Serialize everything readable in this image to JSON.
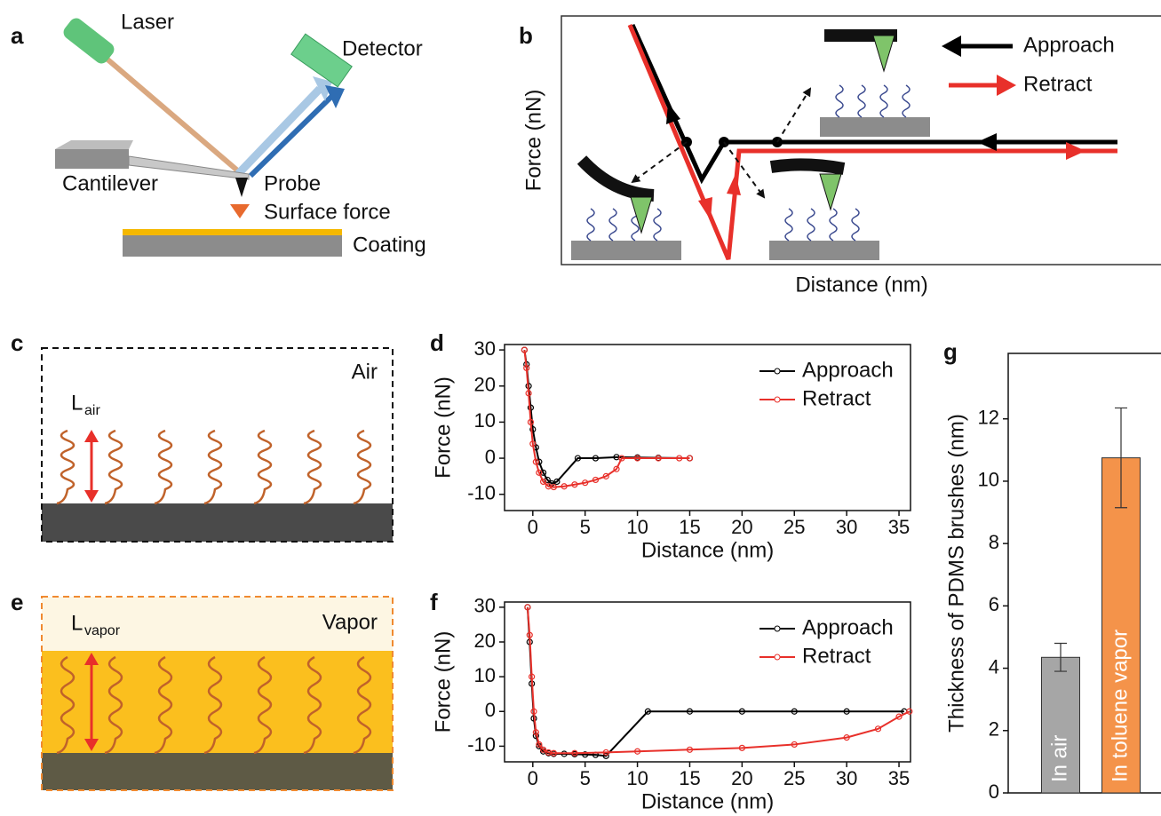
{
  "panel_labels": [
    "a",
    "b",
    "c",
    "d",
    "e",
    "f",
    "g"
  ],
  "setup": {
    "laser": "Laser",
    "detector": "Detector",
    "cantilever": "Cantilever",
    "probe": "Probe",
    "surface_force": "Surface force",
    "coating": "Coating"
  },
  "schematic": {
    "x_label": "Distance (nm)",
    "y_label": "Force (nN)",
    "legend": [
      "Approach",
      "Retract"
    ]
  },
  "brush_air": {
    "medium": "Air",
    "length_symbol": "L",
    "length_subscript": "air"
  },
  "brush_vapor": {
    "medium": "Vapor",
    "length_symbol": "L",
    "length_subscript": "vapor"
  },
  "chart_data": [
    {
      "type": "line",
      "x_label": "Distance (nm)",
      "y_label": "Force (nN)",
      "xlim": [
        -2.7,
        36.1
      ],
      "ylim": [
        -14.5,
        31.5
      ],
      "xticks": [
        0,
        5,
        10,
        15,
        20,
        25,
        30,
        35
      ],
      "yticks": [
        -10,
        0,
        10,
        20,
        30
      ],
      "legend_position": "upper right",
      "series": [
        {
          "name": "Approach",
          "color": "#000000",
          "x": [
            -0.8,
            -0.6,
            -0.4,
            -0.2,
            0,
            0.3,
            0.6,
            1,
            1.4,
            1.8,
            2.3,
            4.3,
            6,
            8,
            10,
            12,
            15
          ],
          "values": [
            30,
            26,
            20,
            14,
            8,
            3,
            -1,
            -4,
            -6,
            -7,
            -6.5,
            0,
            0,
            0.3,
            0.2,
            0.1,
            0
          ]
        },
        {
          "name": "Retract",
          "color": "#e8302a",
          "x": [
            -0.8,
            -0.6,
            -0.4,
            -0.2,
            0,
            0.3,
            0.6,
            1,
            1.5,
            2,
            3,
            4,
            5,
            6,
            7,
            8,
            8.5,
            10,
            12,
            14,
            15
          ],
          "values": [
            30,
            25,
            18,
            10,
            4,
            -1,
            -4,
            -6.5,
            -7.8,
            -8,
            -7.8,
            -7.3,
            -6.8,
            -6,
            -5,
            -3,
            0,
            0,
            0,
            0,
            0
          ]
        }
      ]
    },
    {
      "type": "line",
      "x_label": "Distance (nm)",
      "y_label": "Force (nN)",
      "xlim": [
        -2.7,
        36.1
      ],
      "ylim": [
        -14.5,
        31.5
      ],
      "xticks": [
        0,
        5,
        10,
        15,
        20,
        25,
        30,
        35
      ],
      "yticks": [
        -10,
        0,
        10,
        20,
        30
      ],
      "legend_position": "upper right",
      "series": [
        {
          "name": "Approach",
          "color": "#000000",
          "x": [
            -0.5,
            -0.3,
            -0.1,
            0.1,
            0.3,
            0.6,
            1,
            1.5,
            2,
            3,
            4,
            5,
            6,
            7,
            11,
            15,
            20,
            25,
            30,
            35.5
          ],
          "values": [
            30,
            20,
            8,
            -2,
            -7,
            -10,
            -11.5,
            -12,
            -12.2,
            -12.2,
            -12.3,
            -12.4,
            -12.5,
            -12.8,
            0,
            0,
            0,
            0,
            0,
            0
          ]
        },
        {
          "name": "Retract",
          "color": "#e8302a",
          "x": [
            -0.5,
            -0.3,
            -0.1,
            0.1,
            0.3,
            0.6,
            1,
            1.5,
            2,
            4,
            7,
            10,
            15,
            20,
            25,
            30,
            33,
            35,
            36
          ],
          "values": [
            30,
            22,
            10,
            0,
            -6,
            -9.5,
            -11,
            -11.8,
            -12,
            -12,
            -11.8,
            -11.5,
            -11,
            -10.5,
            -9.5,
            -7.5,
            -5,
            -1.5,
            0
          ]
        }
      ]
    },
    {
      "type": "bar",
      "y_label": "Thickness of PDMS brushes (nm)",
      "categories": [
        "In air",
        "In toluene vapor"
      ],
      "values": [
        4.35,
        10.75
      ],
      "errors": [
        0.45,
        1.6
      ],
      "colors": [
        "#a6a6a6",
        "#f4934a"
      ],
      "ylim": [
        0,
        14.1
      ],
      "yticks": [
        0,
        2,
        4,
        6,
        8,
        10,
        12
      ]
    }
  ]
}
